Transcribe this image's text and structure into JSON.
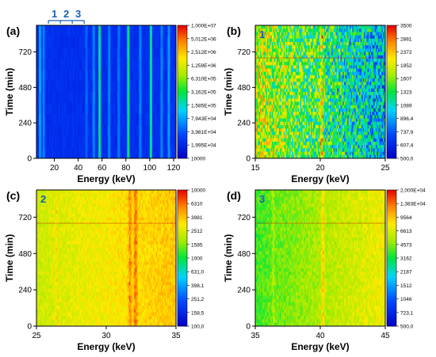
{
  "chart_data": [
    {
      "type": "heatmap",
      "panel_label": "(a)",
      "xlabel": "Energy (keV)",
      "ylabel": "Time (min)",
      "xlim": [
        5,
        122
      ],
      "ylim": [
        0,
        900
      ],
      "xticks": [
        20,
        40,
        60,
        80,
        100,
        120
      ],
      "yticks": [
        0,
        240,
        480,
        720
      ],
      "colorbar_scale": "log",
      "colorbar_ticks": [
        "1,000E+07",
        "5,012E+06",
        "2,512E+06",
        "1,259E+06",
        "6,310E+05",
        "3,162E+05",
        "1,585E+05",
        "7,943E+04",
        "3,981E+04",
        "1,995E+04",
        "10000"
      ],
      "bracket_labels": [
        "1",
        "2",
        "3"
      ],
      "bracket_energies": [
        15,
        25,
        35,
        45
      ],
      "bright_lines": [
        {
          "energy": 8,
          "level": 0.35
        },
        {
          "energy": 11,
          "level": 0.3
        },
        {
          "energy": 47,
          "level": 0.25
        },
        {
          "energy": 53,
          "level": 0.3
        },
        {
          "energy": 58,
          "level": 0.55
        },
        {
          "energy": 66,
          "level": 0.3
        },
        {
          "energy": 74,
          "level": 0.28
        },
        {
          "energy": 82,
          "level": 0.58
        },
        {
          "energy": 92,
          "level": 0.3
        },
        {
          "energy": 101,
          "level": 0.55
        },
        {
          "energy": 110,
          "level": 0.3
        },
        {
          "energy": 116,
          "level": 0.35
        }
      ],
      "background_level": 0.12
    },
    {
      "type": "heatmap",
      "panel_label": "(b)",
      "inset_label": "1",
      "inset_color": "#1a5fb4",
      "xlabel": "Energy (keV)",
      "ylabel": "Time (min)",
      "xlim": [
        15,
        25
      ],
      "ylim": [
        0,
        900
      ],
      "xticks": [
        15,
        20,
        25
      ],
      "yticks": [
        0,
        240,
        480,
        720
      ],
      "colorbar_scale": "log",
      "colorbar_ticks": [
        "3500",
        "2881",
        "2372",
        "1952",
        "1607",
        "1323",
        "1089",
        "896,4",
        "737,9",
        "607,4",
        "500,0"
      ],
      "background_level": 0.5,
      "x_gradient": -0.35,
      "noise": 0.45,
      "peaks": [
        {
          "energy": 20.1,
          "level": 0.25,
          "width": 0.15
        }
      ]
    },
    {
      "type": "heatmap",
      "panel_label": "(c)",
      "inset_label": "2",
      "inset_color": "#1a5fb4",
      "xlabel": "Energy (keV)",
      "ylabel": "Time (min)",
      "xlim": [
        25,
        35
      ],
      "ylim": [
        0,
        900
      ],
      "xticks": [
        25,
        30,
        35
      ],
      "yticks": [
        0,
        240,
        480,
        720
      ],
      "colorbar_scale": "log",
      "colorbar_ticks": [
        "10000",
        "6310",
        "3981",
        "2512",
        "1585",
        "1000",
        "631,0",
        "398,1",
        "251,2",
        "158,5",
        "100,0"
      ],
      "background_level": 0.74,
      "x_gradient": 0.12,
      "noise": 0.08,
      "peaks": [
        {
          "energy": 26.4,
          "level": 0.08,
          "width": 0.08
        },
        {
          "energy": 31.7,
          "level": 0.12,
          "width": 0.12
        },
        {
          "energy": 32.1,
          "level": 0.14,
          "width": 0.12
        }
      ]
    },
    {
      "type": "heatmap",
      "panel_label": "(d)",
      "inset_label": "3",
      "inset_color": "#1a5fb4",
      "xlabel": "Energy (keV)",
      "ylabel": "Time (min)",
      "xlim": [
        35,
        45
      ],
      "ylim": [
        0,
        900
      ],
      "xticks": [
        35,
        40,
        45
      ],
      "yticks": [
        0,
        240,
        480,
        720
      ],
      "colorbar_scale": "log",
      "colorbar_ticks": [
        "2,000E+04",
        "1,383E+04",
        "9564",
        "6613",
        "4573",
        "3162",
        "2187",
        "1512",
        "1046",
        "723,1",
        "500,0"
      ],
      "background_level": 0.64,
      "x_gradient": 0.18,
      "noise": 0.1,
      "peaks": [
        {
          "energy": 36.4,
          "level": 0.08,
          "width": 0.08
        },
        {
          "energy": 40.2,
          "level": 0.14,
          "width": 0.12
        }
      ]
    }
  ]
}
